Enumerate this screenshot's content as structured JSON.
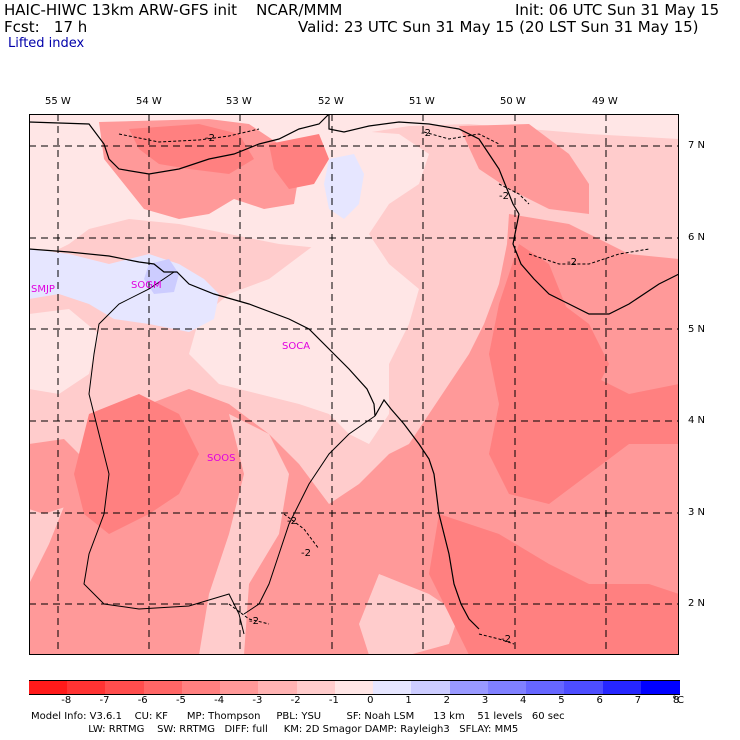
{
  "header": {
    "model": "HAIC-HIWC 13km ARW-GFS init    NCAR/MMM",
    "fcst": "Fcst:   17 h",
    "init": "Init: 06 UTC Sun 31 May 15",
    "valid": "Valid: 23 UTC Sun 31 May 15 (20 LST Sun 31 May 15)",
    "field": "Lifted index"
  },
  "map": {
    "lon_labels": [
      "55 W",
      "54 W",
      "53 W",
      "52 W",
      "51 W",
      "50 W",
      "49 W"
    ],
    "lat_labels": [
      "7 N",
      "6 N",
      "5 N",
      "4 N",
      "3 N",
      "2 N"
    ],
    "stations": [
      "SMJP",
      "SOGM",
      "SOCA",
      "SOOS"
    ],
    "contour_label": "-2"
  },
  "colorbar": {
    "ticks": [
      "-8",
      "-7",
      "-6",
      "-5",
      "-4",
      "-3",
      "-2",
      "-1",
      "0",
      "1",
      "2",
      "3",
      "4",
      "5",
      "6",
      "7",
      "8"
    ],
    "unit": "°C",
    "colors": [
      "#ff1a1a",
      "#ff3333",
      "#ff4d4d",
      "#ff6666",
      "#ff8080",
      "#ff9999",
      "#ffb3b3",
      "#ffcccc",
      "#ffe6e6",
      "#e6e6ff",
      "#ccccff",
      "#9999ff",
      "#8080ff",
      "#6666ff",
      "#4d4dff",
      "#2626ff",
      "#0000ff"
    ]
  },
  "footer": {
    "line1": "Model Info: V3.6.1    CU: KF      MP: Thompson     PBL: YSU        SF: Noah LSM      13 km    51 levels   60 sec",
    "line2": "                  LW: RRTMG    SW: RRTMG   DIFF: full     KM: 2D Smagor DAMP: Rayleigh3   SFLAY: MM5"
  }
}
